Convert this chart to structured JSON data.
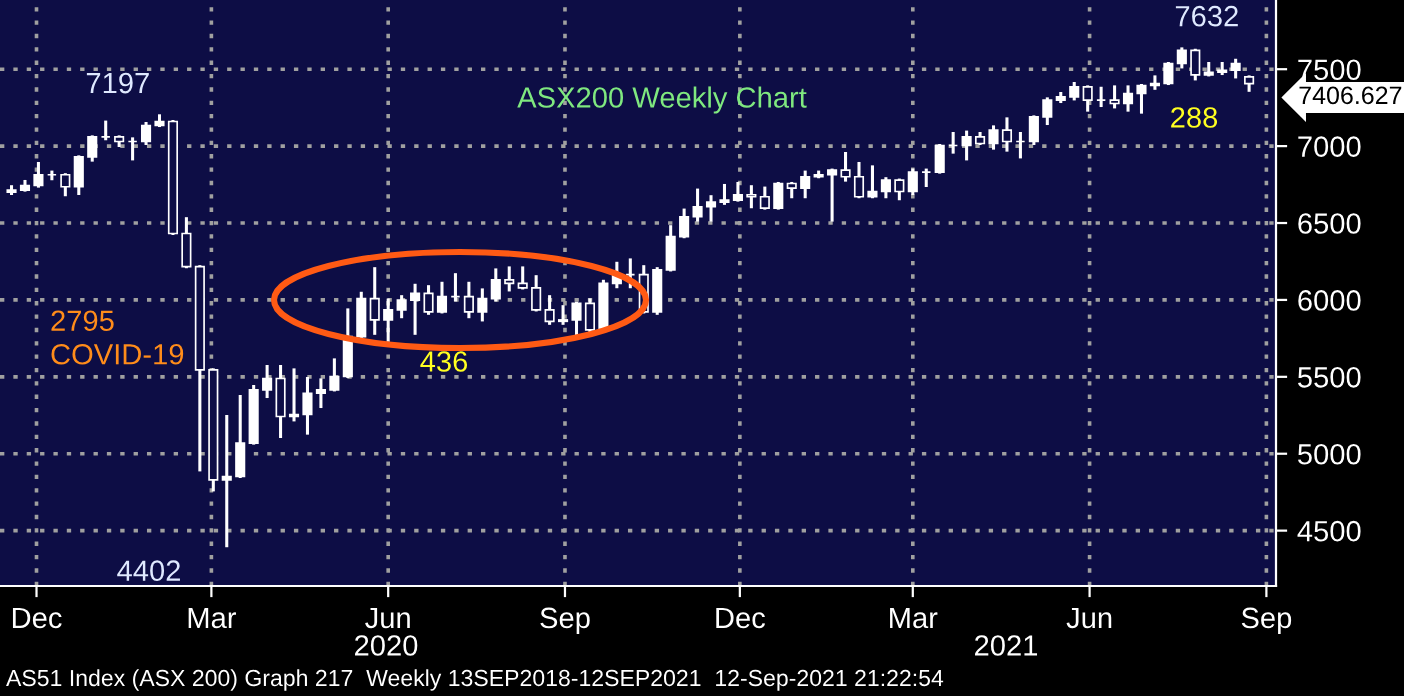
{
  "chart_data": {
    "type": "candlestick",
    "title": "ASX200 Weekly Chart",
    "x": [
      "2019-12-06",
      "2019-12-13",
      "2019-12-20",
      "2019-12-27",
      "2020-01-03",
      "2020-01-10",
      "2020-01-17",
      "2020-01-24",
      "2020-01-31",
      "2020-02-07",
      "2020-02-14",
      "2020-02-21",
      "2020-02-28",
      "2020-03-06",
      "2020-03-13",
      "2020-03-20",
      "2020-03-27",
      "2020-04-03",
      "2020-04-10",
      "2020-04-17",
      "2020-04-24",
      "2020-05-01",
      "2020-05-08",
      "2020-05-15",
      "2020-05-22",
      "2020-05-29",
      "2020-06-05",
      "2020-06-12",
      "2020-06-19",
      "2020-06-26",
      "2020-07-03",
      "2020-07-10",
      "2020-07-17",
      "2020-07-24",
      "2020-07-31",
      "2020-08-07",
      "2020-08-14",
      "2020-08-21",
      "2020-08-28",
      "2020-09-04",
      "2020-09-11",
      "2020-09-18",
      "2020-09-25",
      "2020-10-02",
      "2020-10-09",
      "2020-10-16",
      "2020-10-23",
      "2020-10-30",
      "2020-11-06",
      "2020-11-13",
      "2020-11-20",
      "2020-11-27",
      "2020-12-04",
      "2020-12-11",
      "2020-12-18",
      "2020-12-25",
      "2021-01-01",
      "2021-01-08",
      "2021-01-15",
      "2021-01-22",
      "2021-01-29",
      "2021-02-05",
      "2021-02-12",
      "2021-02-19",
      "2021-02-26",
      "2021-03-05",
      "2021-03-12",
      "2021-03-19",
      "2021-03-26",
      "2021-04-02",
      "2021-04-09",
      "2021-04-16",
      "2021-04-23",
      "2021-04-30",
      "2021-05-07",
      "2021-05-14",
      "2021-05-21",
      "2021-05-28",
      "2021-06-04",
      "2021-06-11",
      "2021-06-18",
      "2021-06-25",
      "2021-07-02",
      "2021-07-09",
      "2021-07-16",
      "2021-07-23",
      "2021-07-30",
      "2021-08-06",
      "2021-08-13",
      "2021-08-20",
      "2021-08-27",
      "2021-09-03",
      "2021-09-10"
    ],
    "ohlc": [
      [
        6700,
        6736,
        6692,
        6714
      ],
      [
        6714,
        6770,
        6714,
        6744
      ],
      [
        6744,
        6887,
        6740,
        6814
      ],
      [
        6814,
        6831,
        6788,
        6814
      ],
      [
        6814,
        6814,
        6684,
        6736
      ],
      [
        6736,
        6930,
        6692,
        6930
      ],
      [
        6930,
        7060,
        6909,
        7060
      ],
      [
        7060,
        7156,
        7048,
        7060
      ],
      [
        7060,
        7060,
        7004,
        7030
      ],
      [
        7030,
        7047,
        6917,
        7030
      ],
      [
        7030,
        7147,
        7017,
        7134
      ],
      [
        7134,
        7197,
        7134,
        7160
      ],
      [
        7160,
        7160,
        6432,
        6432
      ],
      [
        6432,
        6528,
        6216,
        6216
      ],
      [
        6216,
        6216,
        4895,
        5545
      ],
      [
        5545,
        5545,
        4765,
        4830
      ],
      [
        4830,
        5242,
        4402,
        4852
      ],
      [
        4852,
        5372,
        4852,
        5069
      ],
      [
        5069,
        5437,
        5069,
        5415
      ],
      [
        5415,
        5567,
        5372,
        5489
      ],
      [
        5489,
        5567,
        5112,
        5242
      ],
      [
        5242,
        5545,
        5220,
        5255
      ],
      [
        5255,
        5489,
        5134,
        5393
      ],
      [
        5393,
        5480,
        5307,
        5415
      ],
      [
        5415,
        5610,
        5415,
        5502
      ],
      [
        5502,
        5935,
        5502,
        5761
      ],
      [
        5761,
        6043,
        5761,
        6008
      ],
      [
        6008,
        6203,
        5783,
        5870
      ],
      [
        5870,
        5999,
        5740,
        5935
      ],
      [
        5935,
        6021,
        5891,
        5999
      ],
      [
        5999,
        6095,
        5783,
        6043
      ],
      [
        6043,
        6086,
        5913,
        5922
      ],
      [
        5922,
        6108,
        5922,
        6021
      ],
      [
        6021,
        6164,
        6000,
        6021
      ],
      [
        6021,
        6108,
        5891,
        5922
      ],
      [
        5922,
        6065,
        5870,
        6008
      ],
      [
        6008,
        6195,
        6000,
        6130
      ],
      [
        6130,
        6208,
        6065,
        6108
      ],
      [
        6108,
        6208,
        6078,
        6078
      ],
      [
        6078,
        6151,
        5935,
        5935
      ],
      [
        5935,
        6021,
        5848,
        5861
      ],
      [
        5861,
        5956,
        5848,
        5870
      ],
      [
        5870,
        5978,
        5775,
        5978
      ],
      [
        5978,
        6000,
        5792,
        5805
      ],
      [
        5805,
        6121,
        5805,
        6108
      ],
      [
        6108,
        6238,
        6086,
        6164
      ],
      [
        6164,
        6260,
        6086,
        6164
      ],
      [
        6164,
        6216,
        5922,
        5922
      ],
      [
        5922,
        6203,
        5913,
        6195
      ],
      [
        6195,
        6476,
        6195,
        6411
      ],
      [
        6411,
        6584,
        6411,
        6541
      ],
      [
        6541,
        6714,
        6519,
        6606
      ],
      [
        6606,
        6671,
        6519,
        6636
      ],
      [
        6636,
        6744,
        6628,
        6649
      ],
      [
        6649,
        6757,
        6649,
        6684
      ],
      [
        6684,
        6736,
        6606,
        6671
      ],
      [
        6671,
        6727,
        6597,
        6597
      ],
      [
        6597,
        6757,
        6597,
        6757
      ],
      [
        6757,
        6757,
        6671,
        6727
      ],
      [
        6727,
        6831,
        6671,
        6801
      ],
      [
        6801,
        6831,
        6801,
        6814
      ],
      [
        6814,
        6844,
        6519,
        6844
      ],
      [
        6844,
        6952,
        6779,
        6801
      ],
      [
        6801,
        6887,
        6671,
        6671
      ],
      [
        6671,
        6865,
        6671,
        6705
      ],
      [
        6705,
        6788,
        6671,
        6779
      ],
      [
        6779,
        6779,
        6658,
        6705
      ],
      [
        6705,
        6844,
        6692,
        6831
      ],
      [
        6831,
        6844,
        6744,
        6831
      ],
      [
        6831,
        7004,
        6831,
        7004
      ],
      [
        7004,
        7082,
        6961,
        7004
      ],
      [
        7004,
        7091,
        6917,
        7060
      ],
      [
        7060,
        7082,
        7017,
        7017
      ],
      [
        7017,
        7125,
        6987,
        7104
      ],
      [
        7104,
        7177,
        6974,
        7030
      ],
      [
        7030,
        7082,
        6930,
        7030
      ],
      [
        7030,
        7190,
        7017,
        7190
      ],
      [
        7190,
        7307,
        7147,
        7299
      ],
      [
        7299,
        7342,
        7290,
        7320
      ],
      [
        7320,
        7407,
        7307,
        7385
      ],
      [
        7385,
        7385,
        7234,
        7299
      ],
      [
        7299,
        7376,
        7264,
        7299
      ],
      [
        7299,
        7385,
        7255,
        7277
      ],
      [
        7277,
        7385,
        7234,
        7342
      ],
      [
        7342,
        7394,
        7221,
        7394
      ],
      [
        7394,
        7450,
        7376,
        7407
      ],
      [
        7407,
        7537,
        7407,
        7537
      ],
      [
        7537,
        7632,
        7515,
        7623
      ],
      [
        7623,
        7623,
        7437,
        7463
      ],
      [
        7463,
        7537,
        7463,
        7480
      ],
      [
        7480,
        7537,
        7472,
        7493
      ],
      [
        7493,
        7558,
        7450,
        7537
      ],
      [
        7450,
        7450,
        7363,
        7406.627
      ]
    ],
    "color": "#ffffff",
    "xlim": [
      "2019-11-30",
      "2021-09-24"
    ],
    "ylim": [
      4140,
      7950
    ],
    "xticks": [
      {
        "value": "2019-12-19",
        "label": "Dec"
      },
      {
        "value": "2020-03-19",
        "label": "Mar"
      },
      {
        "value": "2020-06-19",
        "label": "Jun"
      },
      {
        "value": "2020-09-19",
        "label": "Sep"
      },
      {
        "value": "2020-12-19",
        "label": "Dec"
      },
      {
        "value": "2021-03-19",
        "label": "Mar"
      },
      {
        "value": "2021-06-19",
        "label": "Jun"
      },
      {
        "value": "2021-09-19",
        "label": "Sep"
      }
    ],
    "yticks": [
      4500,
      5000,
      5500,
      6000,
      6500,
      7000,
      7500
    ],
    "grid": true,
    "annotations": [
      {
        "text": "7197",
        "x": "2020-02-21",
        "y": 7197
      },
      {
        "text": "4402",
        "x": "2020-03-27",
        "y": 4402
      },
      {
        "text": "7632",
        "x": "2021-08-06",
        "y": 7632
      },
      {
        "text": "7406.627",
        "x": "2021-09-10",
        "y": 7406.627
      },
      "2795\nCOVID-19",
      "436",
      "288",
      "2020",
      "2021",
      "AS51 Index (ASX 200) Graph 217  Weekly 13SEP2018-12SEP2021  12-Sep-2021 21:22:54"
    ]
  }
}
